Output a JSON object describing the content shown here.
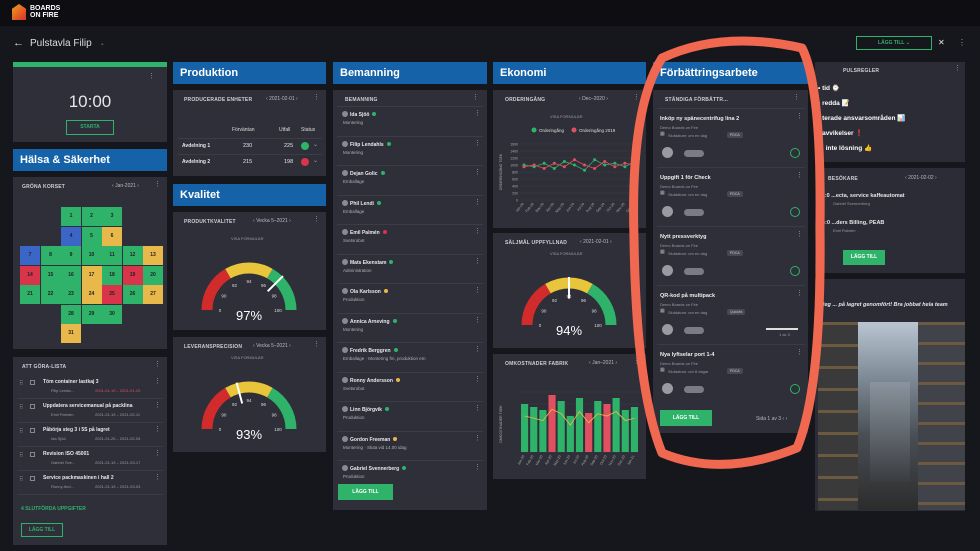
{
  "brand": {
    "name": "BOARDS ON FIRE"
  },
  "board": {
    "title": "Pulstavla Filip",
    "add_label": "LÄGG TILL"
  },
  "clock": {
    "time": "10:00",
    "start": "STARTA"
  },
  "halsa": {
    "title": "Hälsa & Säkerhet",
    "card": "GRÖNA KORSET",
    "month": "Jan-2021",
    "cells": [
      {
        "n": "1",
        "c": "#2fb26a"
      },
      {
        "n": "2",
        "c": "#2fb26a"
      },
      {
        "n": "3",
        "c": "#2fb26a"
      },
      {
        "n": "4",
        "c": "#3b66c8"
      },
      {
        "n": "5",
        "c": "#2fb26a"
      },
      {
        "n": "6",
        "c": "#e8b84a"
      },
      {
        "n": "7",
        "c": "#3b66c8"
      },
      {
        "n": "8",
        "c": "#2fb26a"
      },
      {
        "n": "9",
        "c": "#2fb26a"
      },
      {
        "n": "10",
        "c": "#2fb26a"
      },
      {
        "n": "11",
        "c": "#2fb26a"
      },
      {
        "n": "12",
        "c": "#2fb26a"
      },
      {
        "n": "13",
        "c": "#e8b84a"
      },
      {
        "n": "14",
        "c": "#d8344a"
      },
      {
        "n": "15",
        "c": "#2fb26a"
      },
      {
        "n": "16",
        "c": "#2fb26a"
      },
      {
        "n": "17",
        "c": "#e8b84a"
      },
      {
        "n": "18",
        "c": "#2fb26a"
      },
      {
        "n": "19",
        "c": "#d8344a"
      },
      {
        "n": "20",
        "c": "#2fb26a"
      },
      {
        "n": "21",
        "c": "#2fb26a"
      },
      {
        "n": "22",
        "c": "#2fb26a"
      },
      {
        "n": "23",
        "c": "#2fb26a"
      },
      {
        "n": "24",
        "c": "#e8b84a"
      },
      {
        "n": "25",
        "c": "#d8344a"
      },
      {
        "n": "26",
        "c": "#2fb26a"
      },
      {
        "n": "27",
        "c": "#e8b84a"
      },
      {
        "n": "28",
        "c": "#2fb26a"
      },
      {
        "n": "29",
        "c": "#2fb26a"
      },
      {
        "n": "30",
        "c": "#2fb26a"
      },
      {
        "n": "31",
        "c": "#e8b84a"
      }
    ]
  },
  "todo": {
    "title": "ATT GÖRA-LISTA",
    "items": [
      {
        "t": "Töm container lastkaj 3",
        "who": "Filip Lenda...",
        "d": "2021-01-19 – 2021-01-25"
      },
      {
        "t": "Uppdatera servicemanual på packlina",
        "who": "Emil Palmén",
        "d": "2021-01-19 – 2021-02-11"
      },
      {
        "t": "Påbörja steg 3 i 5S på lagret",
        "who": "Ida Sjöö",
        "d": "2021-01-25 – 2021-02-05"
      },
      {
        "t": "Revision ISO 45001",
        "who": "Gabriel Sve...",
        "d": "2021-01-19 – 2021-03-17"
      },
      {
        "t": "Service packmaskinen i hall 2",
        "who": "Ronny And...",
        "d": "2021-01-19 – 2021-03-03"
      }
    ],
    "done": "4 SLUTFÖRDA UPPGIFTER",
    "add": "LÄGG TILL"
  },
  "produktion": {
    "title": "Produktion",
    "card": "PRODUCERADE ENHETER",
    "date": "2021-02-01",
    "headers": [
      "Förväntan",
      "Utfall",
      "Status"
    ],
    "rows": [
      {
        "name": "Avdelning 1",
        "f": "230",
        "u": "225",
        "c": "#2fb26a"
      },
      {
        "name": "Avdelning 2",
        "f": "215",
        "u": "198",
        "c": "#d8344a"
      }
    ]
  },
  "kvalitet": {
    "title": "Kvalitet",
    "g1": {
      "card": "PRODUKTKVALITET",
      "week": "Vecka 5–2021",
      "link": "VISA FORMULÄR",
      "value": "97%",
      "pct": 97,
      "ticks": [
        "0",
        "90",
        "92",
        "94",
        "96",
        "98",
        "100"
      ]
    },
    "g2": {
      "card": "LEVERANSPRECISION",
      "week": "Vecka 5–2021",
      "link": "VISA FORMULÄR",
      "value": "93%",
      "pct": 93,
      "ticks": [
        "0",
        "90",
        "92",
        "94",
        "96",
        "98",
        "100"
      ]
    }
  },
  "bemanning": {
    "title": "Bemanning",
    "card": "BEMANNING",
    "people": [
      {
        "n": "Ida Sjöö",
        "r": "Montering",
        "c": "#2fb26a"
      },
      {
        "n": "Filip Lendahls",
        "r": "Montering",
        "c": "#2fb26a"
      },
      {
        "n": "Dejan Golic",
        "r": "Emballage",
        "c": "#2fb26a"
      },
      {
        "n": "Phil Lendi",
        "r": "Emballage",
        "c": "#2fb26a"
      },
      {
        "n": "Emil Palmén",
        "r": "Svetsrobot",
        "c": "#d8344a"
      },
      {
        "n": "Mats Ekenstam",
        "r": "Administration",
        "c": "#2fb26a"
      },
      {
        "n": "Ola Karlsson",
        "r": "Produktion",
        "c": "#e8b84a"
      },
      {
        "n": "Annica Arneving",
        "r": "Montering",
        "c": "#2fb26a"
      },
      {
        "n": "Fredrik Berggren",
        "r": "Emballage · Montering fm, produktion em",
        "c": "#2fb26a"
      },
      {
        "n": "Ronny Andersson",
        "r": "Svetsrobot",
        "c": "#e8b84a"
      },
      {
        "n": "Linn Björgvik",
        "r": "Produktion",
        "c": "#2fb26a"
      },
      {
        "n": "Gordon Freeman",
        "r": "Montering · Sluta vid 14.00 idag",
        "c": "#e8b84a"
      },
      {
        "n": "Gabriel Svennerberg",
        "r": "Produktion",
        "c": "#2fb26a"
      }
    ],
    "add": "LÄGG TILL"
  },
  "ekonomi": {
    "title": "Ekonomi",
    "c1": {
      "card": "ORDERINGÅNG",
      "month": "Dec–2020",
      "link": "VISA FORMULÄR",
      "legend": [
        "Orderingång",
        "Orderingång 2019"
      ],
      "ylabel": "ORDERINGÅNG TSEK",
      "yticks": [
        "0",
        "200",
        "400",
        "600",
        "800",
        "1000",
        "1200",
        "1400",
        "1600"
      ]
    },
    "g": {
      "card": "SÄLJMÅL UPPFYLLNAD",
      "date": "2021-02-01",
      "link": "VISA FORMULÄR",
      "value": "94%",
      "pct": 94,
      "ticks": [
        "0",
        "90",
        "92",
        "94",
        "96",
        "98",
        "100"
      ]
    },
    "c2": {
      "card": "OMKOSTNADER FABRIK",
      "month": "Jan–2021",
      "ylabel": "OMKOSTNADER TSEK"
    }
  },
  "chart_data": [
    {
      "type": "line",
      "title": "ORDERINGÅNG",
      "ylabel": "ORDERINGÅNG TSEK",
      "ylim": [
        0,
        1600
      ],
      "x": [
        "Jan-20",
        "Feb-20",
        "Mar-20",
        "Apr-20",
        "May-20",
        "Jun-20",
        "Jul-20",
        "Aug-20",
        "Sep-20",
        "Oct-20",
        "Nov-20",
        "Dec-20"
      ],
      "series": [
        {
          "name": "Orderingång",
          "values": [
            1000,
            950,
            1050,
            900,
            1100,
            1000,
            850,
            1150,
            1000,
            1050,
            950,
            1100
          ]
        },
        {
          "name": "Orderingång 2019",
          "values": [
            950,
            1000,
            900,
            1050,
            950,
            1150,
            1000,
            900,
            1100,
            950,
            1050,
            1000
          ]
        }
      ]
    },
    {
      "type": "bar",
      "title": "OMKOSTNADER FABRIK",
      "ylabel": "OMKOSTNADER TSEK",
      "x": [
        "Jan-20",
        "Feb-20",
        "Mar-20",
        "Apr-20",
        "May-20",
        "Jun-20",
        "Jul-20",
        "Aug-20",
        "Sep-20",
        "Oct-20",
        "Nov-20",
        "Dec-20",
        "Jan-21"
      ],
      "values": [
        80,
        75,
        70,
        95,
        85,
        60,
        90,
        65,
        85,
        80,
        90,
        70,
        75
      ]
    }
  ],
  "forb": {
    "title": "Förbättringsarbete",
    "card": "STÄNDIGA FÖRBÄTTR...",
    "items": [
      {
        "t": "Inköp ny spänecentrifug lina 2",
        "org": "Demo Boards on Fire",
        "due": "Slutdatum: om en dag",
        "tag": "PDCA"
      },
      {
        "t": "Uppgift 1 för Check",
        "org": "Demo Boards on Fire",
        "due": "Slutdatum: om en dag",
        "tag": "PDCA"
      },
      {
        "t": "Nytt pressverktyg",
        "org": "Demo Boards on Fire",
        "due": "Slutdatum: om en dag",
        "tag": "PDCA"
      },
      {
        "t": "QR-kod på multipack",
        "org": "Demo Boards on Fire",
        "due": "Slutdatum: om en dag",
        "tag": "Quickfix",
        "prog": "1 av 3"
      },
      {
        "t": "Nya lyftselar port 1-4",
        "org": "Demo Boards on Fire",
        "due": "Slutdatum: om 8 dagar",
        "tag": "PDCA"
      }
    ],
    "add": "LÄGG TILL",
    "page": "Sida 1 av 3"
  },
  "right": {
    "rules_title": "PULSREGLER",
    "rules": [
      "tid ⌚",
      "redda 📝",
      "terade ansvarsområden 📊",
      "avvikelser ❗",
      ", inte lösning 👍"
    ],
    "visits": "BESÖKARE",
    "vdate": "2021-02-02",
    "v1": {
      "t": "11:0 ...ecta, service kaffeautomat",
      "w": "Gabriel Svennerberg"
    },
    "v2": {
      "t": "14:0 ...ders Billing, PEAB",
      "w": "Emil Palmén"
    },
    "add": "LÄGG TILL",
    "news": "Steg ... på lagret genomfört! Bra jobbat hela team"
  }
}
